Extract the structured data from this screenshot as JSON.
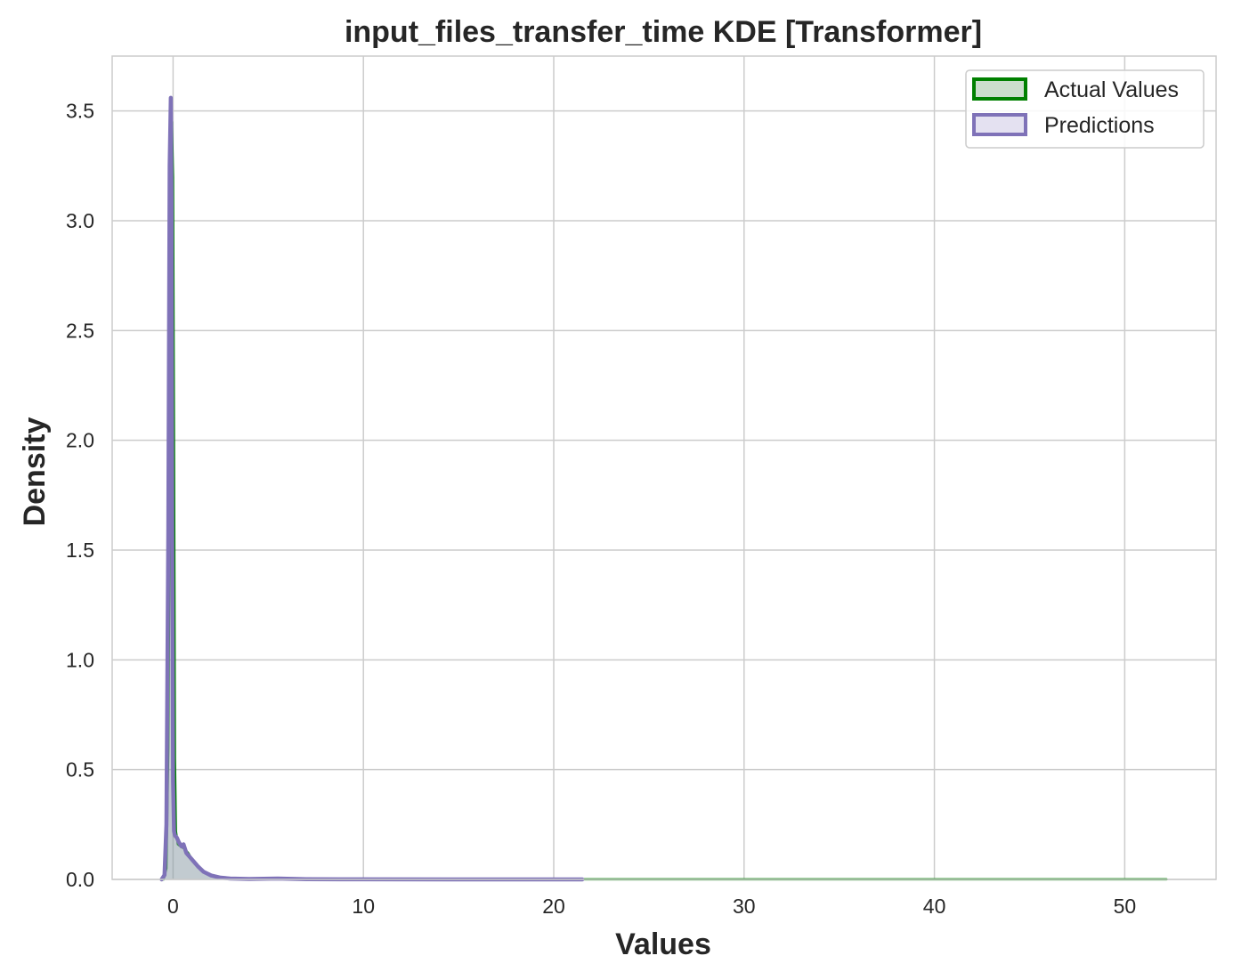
{
  "chart_data": {
    "type": "area",
    "title": "input_files_transfer_time KDE [Transformer]",
    "xlabel": "Values",
    "ylabel": "Density",
    "xlim": [
      -3.2,
      54.8
    ],
    "ylim": [
      0,
      3.75
    ],
    "xticks": [
      0,
      10,
      20,
      30,
      40,
      50
    ],
    "yticks": [
      0.0,
      0.5,
      1.0,
      1.5,
      2.0,
      2.5,
      3.0,
      3.5
    ],
    "xtick_labels": [
      "0",
      "10",
      "20",
      "30",
      "40",
      "50"
    ],
    "ytick_labels": [
      "0.0",
      "0.5",
      "1.0",
      "1.5",
      "2.0",
      "2.5",
      "3.0",
      "3.5"
    ],
    "grid": true,
    "legend_position": "top-right",
    "series": [
      {
        "name": "Actual Values",
        "line_color": "#008000",
        "fill_color": "#2e7d32",
        "fill_opacity": 0.25,
        "x": [
          -0.5,
          -0.35,
          -0.25,
          -0.18,
          -0.12,
          -0.06,
          0.0,
          0.05,
          0.1,
          0.15,
          0.25,
          0.4,
          0.6,
          0.8,
          1.0,
          1.2,
          1.5,
          1.8,
          2.2,
          2.7,
          3.5,
          5.0,
          8.0,
          12.0,
          20.0,
          30.0,
          40.0,
          52.2
        ],
        "y": [
          0.0,
          0.05,
          0.6,
          1.7,
          2.8,
          3.45,
          3.2,
          2.0,
          0.55,
          0.22,
          0.16,
          0.15,
          0.14,
          0.12,
          0.09,
          0.07,
          0.045,
          0.025,
          0.012,
          0.006,
          0.003,
          0.002,
          0.001,
          0.0008,
          0.0006,
          0.0005,
          0.0004,
          0.0003
        ]
      },
      {
        "name": "Predictions",
        "line_color": "#7f72b8",
        "fill_color": "#b3a8d6",
        "fill_opacity": 0.35,
        "x": [
          -0.6,
          -0.45,
          -0.35,
          -0.25,
          -0.18,
          -0.12,
          -0.08,
          -0.04,
          0.0,
          0.05,
          0.1,
          0.2,
          0.3,
          0.45,
          0.55,
          0.7,
          0.9,
          1.1,
          1.3,
          1.6,
          2.0,
          2.5,
          3.0,
          4.0,
          5.5,
          7.0,
          10.0,
          15.0,
          21.5
        ],
        "y": [
          0.0,
          0.02,
          0.25,
          1.6,
          3.25,
          3.56,
          3.1,
          1.5,
          0.45,
          0.22,
          0.2,
          0.19,
          0.17,
          0.15,
          0.16,
          0.12,
          0.1,
          0.08,
          0.06,
          0.035,
          0.018,
          0.008,
          0.004,
          0.002,
          0.004,
          0.001,
          0.0005,
          0.0002,
          0.0
        ]
      }
    ]
  }
}
